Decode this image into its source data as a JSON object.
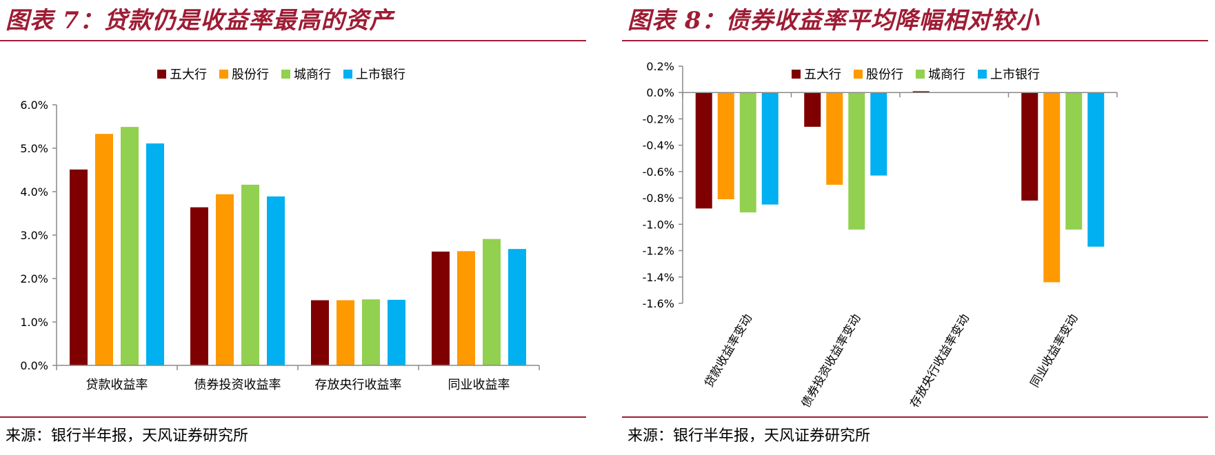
{
  "charts": [
    {
      "title": "图表 7：贷款仍是收益率最高的资产",
      "source": "来源：银行半年报，天风证券研究所",
      "legend": [
        "五大行",
        "股份行",
        "城商行",
        "上市银行"
      ],
      "chart_data": {
        "type": "bar",
        "title": "贷款仍是收益率最高的资产",
        "categories": [
          "贷款收益率",
          "债券投资收益率",
          "存放央行收益率",
          "同业收益率"
        ],
        "series": [
          {
            "name": "五大行",
            "values": [
              4.51,
              3.64,
              1.5,
              2.62
            ]
          },
          {
            "name": "股份行",
            "values": [
              5.33,
              3.94,
              1.5,
              2.63
            ]
          },
          {
            "name": "城商行",
            "values": [
              5.49,
              4.16,
              1.52,
              2.91
            ]
          },
          {
            "name": "上市银行",
            "values": [
              5.11,
              3.89,
              1.51,
              2.68
            ]
          }
        ],
        "ylim": [
          0,
          6
        ],
        "yticks": [
          "0.0%",
          "1.0%",
          "2.0%",
          "3.0%",
          "4.0%",
          "5.0%",
          "6.0%"
        ],
        "unit": "%",
        "legend_position": "top",
        "colors": [
          "#7f0000",
          "#ff9900",
          "#92d050",
          "#00b0f0"
        ],
        "grid": false
      }
    },
    {
      "title": "图表 8：债券收益率平均降幅相对较小",
      "source": "来源：银行半年报，天风证券研究所",
      "legend": [
        "五大行",
        "股份行",
        "城商行",
        "上市银行"
      ],
      "chart_data": {
        "type": "bar",
        "title": "债券收益率平均降幅相对较小",
        "categories": [
          "贷款收益率变动",
          "债券投资收益率变动",
          "存放央行收益率变动",
          "同业收益率变动"
        ],
        "series": [
          {
            "name": "五大行",
            "values": [
              -0.88,
              -0.26,
              0.01,
              -0.82
            ]
          },
          {
            "name": "股份行",
            "values": [
              -0.81,
              -0.7,
              0.0,
              -1.44
            ]
          },
          {
            "name": "城商行",
            "values": [
              -0.91,
              -1.04,
              0.0,
              -1.04
            ]
          },
          {
            "name": "上市银行",
            "values": [
              -0.85,
              -0.63,
              0.0,
              -1.17
            ]
          }
        ],
        "ylim": [
          -1.6,
          0.2
        ],
        "yticks": [
          "-1.6%",
          "-1.4%",
          "-1.2%",
          "-1.0%",
          "-0.8%",
          "-0.6%",
          "-0.4%",
          "-0.2%",
          "0.0%",
          "0.2%"
        ],
        "unit": "%",
        "legend_position": "top",
        "colors": [
          "#7f0000",
          "#ff9900",
          "#92d050",
          "#00b0f0"
        ],
        "grid": false
      }
    }
  ]
}
